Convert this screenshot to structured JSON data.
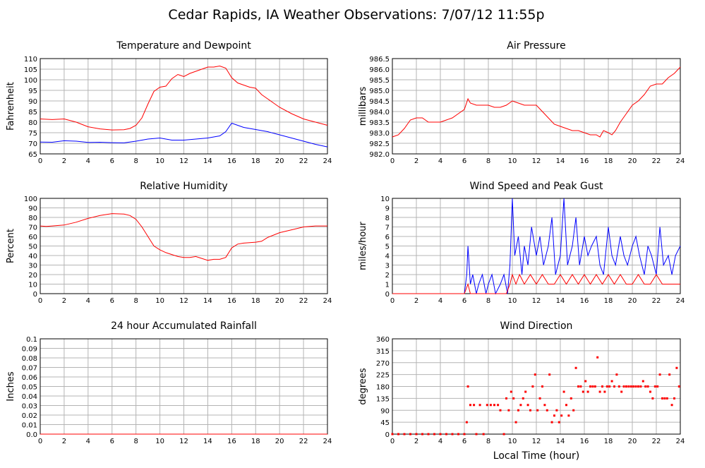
{
  "title": "Cedar Rapids, IA Weather Observations: 7/07/12 11:55p",
  "footer_xlabel": "Local Time (hour)",
  "colors": {
    "red": "#ff0000",
    "blue": "#0000ff",
    "grid": "#b4b4b4",
    "axis": "#000000"
  },
  "chart_data": [
    {
      "id": "temp",
      "type": "line",
      "title": "Temperature and Dewpoint",
      "ylabel": "Fahrenheit",
      "xlim": [
        0,
        24
      ],
      "ylim": [
        65,
        110
      ],
      "yticks": [
        65,
        70,
        75,
        80,
        85,
        90,
        95,
        100,
        105,
        110
      ],
      "xticks": [
        0,
        2,
        4,
        6,
        8,
        10,
        12,
        14,
        16,
        18,
        20,
        22,
        24
      ],
      "series": [
        {
          "color": "#ff0000",
          "x": [
            0,
            1,
            2,
            3,
            4,
            5,
            6,
            7,
            7.5,
            8,
            8.5,
            9,
            9.5,
            10,
            10.5,
            11,
            11.5,
            12,
            12.5,
            13,
            13.5,
            14,
            14.5,
            15,
            15.5,
            16,
            16.5,
            17,
            17.5,
            18,
            18.5,
            19,
            19.5,
            20,
            21,
            22,
            23,
            24
          ],
          "y": [
            81.5,
            81.2,
            81.5,
            80,
            77.8,
            76.8,
            76.3,
            76.4,
            77,
            78.5,
            82,
            88.5,
            94.5,
            96.5,
            97,
            100.5,
            102.5,
            101.5,
            103,
            104,
            105,
            106,
            106,
            106.5,
            105.5,
            101,
            98.5,
            97.5,
            96.5,
            96,
            93,
            91,
            89,
            87,
            84,
            81.5,
            80,
            78.5
          ]
        },
        {
          "color": "#0000ff",
          "x": [
            0,
            1,
            2,
            3,
            4,
            5,
            6,
            7,
            8,
            9,
            10,
            11,
            12,
            13,
            14,
            15,
            15.5,
            16,
            16.5,
            17,
            18,
            19,
            20,
            21,
            22,
            23,
            24
          ],
          "y": [
            70.6,
            70.5,
            71.2,
            71,
            70.4,
            70.5,
            70.3,
            70.2,
            71,
            72,
            72.5,
            71.5,
            71.5,
            72,
            72.5,
            73.5,
            75.5,
            79.5,
            78.5,
            77.5,
            76.5,
            75.5,
            74,
            72.5,
            71,
            69.5,
            68.3
          ]
        }
      ]
    },
    {
      "id": "pressure",
      "type": "line",
      "title": "Air Pressure",
      "ylabel": "millibars",
      "xlim": [
        0,
        24
      ],
      "ylim": [
        982.0,
        986.5
      ],
      "yticks": [
        "982.0",
        "982.5",
        "983.0",
        "983.5",
        "984.0",
        "984.5",
        "985.0",
        "985.5",
        "986.0",
        "986.5"
      ],
      "xticks": [
        0,
        2,
        4,
        6,
        8,
        10,
        12,
        14,
        16,
        18,
        20,
        22,
        24
      ],
      "series": [
        {
          "color": "#ff0000",
          "x": [
            0,
            0.5,
            1,
            1.5,
            2,
            2.5,
            3,
            3.5,
            4,
            4.5,
            5,
            5.5,
            6,
            6.3,
            6.5,
            7,
            7.5,
            8,
            8.5,
            9,
            9.5,
            10,
            10.5,
            11,
            11.5,
            12,
            12.5,
            13,
            13.5,
            14,
            14.5,
            15,
            15.5,
            16,
            16.5,
            17,
            17.3,
            17.6,
            18,
            18.3,
            18.6,
            19,
            19.5,
            20,
            20.5,
            21,
            21.5,
            22,
            22.5,
            23,
            23.5,
            24
          ],
          "y": [
            982.8,
            982.9,
            983.2,
            983.6,
            983.7,
            983.7,
            983.5,
            983.5,
            983.5,
            983.6,
            983.7,
            983.9,
            984.1,
            984.6,
            984.4,
            984.3,
            984.3,
            984.3,
            984.2,
            984.2,
            984.3,
            984.5,
            984.4,
            984.3,
            984.3,
            984.3,
            984.0,
            983.7,
            983.4,
            983.3,
            983.2,
            983.1,
            983.1,
            983.0,
            982.9,
            982.9,
            982.8,
            983.1,
            983.0,
            982.9,
            983.1,
            983.5,
            983.9,
            984.3,
            984.5,
            984.8,
            985.2,
            985.3,
            985.3,
            985.6,
            985.8,
            986.1
          ]
        }
      ]
    },
    {
      "id": "humidity",
      "type": "line",
      "title": "Relative Humidity",
      "ylabel": "Percent",
      "xlim": [
        0,
        24
      ],
      "ylim": [
        0,
        100
      ],
      "yticks": [
        0,
        10,
        20,
        30,
        40,
        50,
        60,
        70,
        80,
        90,
        100
      ],
      "xticks": [
        0,
        2,
        4,
        6,
        8,
        10,
        12,
        14,
        16,
        18,
        20,
        22,
        24
      ],
      "series": [
        {
          "color": "#ff0000",
          "x": [
            0,
            0.5,
            1,
            2,
            3,
            4,
            5,
            6,
            7,
            7.5,
            8,
            8.5,
            9,
            9.5,
            10,
            10.5,
            11,
            11.5,
            12,
            12.5,
            13,
            13.5,
            14,
            14.5,
            15,
            15.5,
            16,
            16.5,
            17,
            18,
            18.5,
            19,
            20,
            21,
            22,
            23,
            24
          ],
          "y": [
            71,
            70.5,
            71,
            72,
            75,
            79,
            82,
            84,
            83.5,
            82,
            78,
            70,
            60,
            50,
            46,
            43,
            41,
            39,
            38,
            38,
            39,
            37,
            35,
            36,
            36,
            38,
            48,
            52,
            53,
            54,
            55,
            59,
            64,
            67,
            70,
            71,
            71
          ]
        }
      ]
    },
    {
      "id": "wind",
      "type": "line",
      "title": "Wind Speed and Peak Gust",
      "ylabel": "miles/hour",
      "xlim": [
        0,
        24
      ],
      "ylim": [
        0,
        10
      ],
      "yticks": [
        0,
        1,
        2,
        3,
        4,
        5,
        6,
        7,
        8,
        9,
        10
      ],
      "xticks": [
        0,
        2,
        4,
        6,
        8,
        10,
        12,
        14,
        16,
        18,
        20,
        22,
        24
      ],
      "series": [
        {
          "color": "#0000ff",
          "x": [
            0,
            6,
            6.2,
            6.3,
            6.5,
            6.7,
            7,
            7.2,
            7.5,
            7.8,
            8,
            8.3,
            8.6,
            9,
            9.3,
            9.6,
            9.8,
            10,
            10.2,
            10.5,
            10.8,
            11,
            11.3,
            11.6,
            12,
            12.3,
            12.6,
            13,
            13.3,
            13.6,
            14,
            14.3,
            14.6,
            15,
            15.3,
            15.6,
            16,
            16.3,
            16.6,
            17,
            17.3,
            17.6,
            18,
            18.3,
            18.6,
            19,
            19.3,
            19.6,
            20,
            20.3,
            20.6,
            21,
            21.3,
            21.6,
            22,
            22.3,
            22.6,
            23,
            23.3,
            23.6,
            24
          ],
          "y": [
            0,
            0,
            2,
            5,
            1,
            2,
            0,
            1,
            2,
            0,
            1,
            2,
            0,
            1,
            2,
            0,
            3,
            10,
            4,
            6,
            2,
            5,
            3,
            7,
            4,
            6,
            3,
            5,
            8,
            2,
            4,
            10,
            3,
            5,
            8,
            3,
            6,
            4,
            5,
            6,
            3,
            2,
            7,
            4,
            3,
            6,
            4,
            3,
            5,
            6,
            4,
            2,
            5,
            4,
            2,
            7,
            3,
            4,
            2,
            4,
            5
          ]
        },
        {
          "color": "#ff0000",
          "x": [
            0,
            6,
            6.3,
            6.5,
            7,
            8,
            9,
            9.5,
            9.8,
            10,
            10.3,
            10.6,
            11,
            11.5,
            12,
            12.5,
            13,
            13.5,
            14,
            14.5,
            15,
            15.5,
            16,
            16.5,
            17,
            17.5,
            18,
            18.5,
            19,
            19.5,
            20,
            20.5,
            21,
            21.5,
            22,
            22.5,
            23,
            23.5,
            24
          ],
          "y": [
            0,
            0,
            1,
            0,
            0,
            0,
            0,
            0,
            1,
            2,
            1,
            2,
            1,
            2,
            1,
            2,
            1,
            1,
            2,
            1,
            2,
            1,
            2,
            1,
            2,
            1,
            2,
            1,
            2,
            1,
            1,
            2,
            1,
            1,
            2,
            1,
            1,
            1,
            1
          ]
        }
      ]
    },
    {
      "id": "rain",
      "type": "line",
      "title": "24 hour Accumulated Rainfall",
      "ylabel": "Inches",
      "xlim": [
        0,
        24
      ],
      "ylim": [
        0,
        0.1
      ],
      "yticks": [
        "0.0",
        "0.01",
        "0.02",
        "0.03",
        "0.04",
        "0.05",
        "0.06",
        "0.07",
        "0.08",
        "0.09",
        "0.1"
      ],
      "xticks": [
        0,
        2,
        4,
        6,
        8,
        10,
        12,
        14,
        16,
        18,
        20,
        22,
        24
      ],
      "series": [
        {
          "color": "#ff0000",
          "x": [
            0,
            24
          ],
          "y": [
            0,
            0
          ]
        }
      ]
    },
    {
      "id": "direction",
      "type": "scatter",
      "title": "Wind Direction",
      "ylabel": "degrees",
      "xlim": [
        0,
        24
      ],
      "ylim": [
        0,
        360
      ],
      "yticks": [
        0,
        45,
        90,
        135,
        180,
        225,
        270,
        315,
        360
      ],
      "xticks": [
        0,
        2,
        4,
        6,
        8,
        10,
        12,
        14,
        16,
        18,
        20,
        22,
        24
      ],
      "series": [
        {
          "color": "#ff0000",
          "x": [
            0,
            0.5,
            1,
            1.5,
            2,
            2.5,
            3,
            3.5,
            4,
            4.5,
            5,
            5.5,
            6,
            6.2,
            6.3,
            6.5,
            6.8,
            7,
            7.3,
            7.6,
            7.9,
            8.2,
            8.5,
            8.8,
            9,
            9.3,
            9.5,
            9.7,
            9.9,
            10.1,
            10.3,
            10.5,
            10.7,
            10.9,
            11.1,
            11.3,
            11.5,
            11.7,
            11.9,
            12.1,
            12.3,
            12.5,
            12.7,
            12.9,
            13.1,
            13.3,
            13.5,
            13.7,
            13.9,
            14.1,
            14.3,
            14.5,
            14.7,
            14.9,
            15.1,
            15.3,
            15.5,
            15.7,
            15.9,
            16.1,
            16.3,
            16.5,
            16.7,
            16.9,
            17.1,
            17.3,
            17.5,
            17.7,
            17.9,
            18.1,
            18.3,
            18.5,
            18.7,
            18.9,
            19.1,
            19.3,
            19.5,
            19.7,
            19.9,
            20.1,
            20.3,
            20.5,
            20.7,
            20.9,
            21.1,
            21.3,
            21.5,
            21.7,
            21.9,
            22.1,
            22.3,
            22.5,
            22.7,
            22.9,
            23.1,
            23.3,
            23.5,
            23.7,
            23.9
          ],
          "y": [
            0,
            0,
            0,
            0,
            0,
            0,
            0,
            0,
            0,
            0,
            0,
            0,
            0,
            45,
            180,
            110,
            110,
            0,
            110,
            0,
            110,
            110,
            110,
            110,
            90,
            0,
            135,
            90,
            160,
            135,
            45,
            90,
            110,
            135,
            160,
            110,
            90,
            180,
            225,
            90,
            135,
            180,
            110,
            90,
            225,
            45,
            70,
            90,
            45,
            70,
            160,
            110,
            70,
            135,
            90,
            250,
            180,
            180,
            160,
            200,
            160,
            180,
            180,
            180,
            290,
            160,
            180,
            160,
            180,
            180,
            200,
            180,
            225,
            180,
            160,
            180,
            180,
            180,
            180,
            180,
            180,
            180,
            180,
            200,
            180,
            180,
            160,
            135,
            180,
            180,
            225,
            135,
            135,
            135,
            225,
            110,
            135,
            250,
            180
          ]
        }
      ]
    }
  ]
}
